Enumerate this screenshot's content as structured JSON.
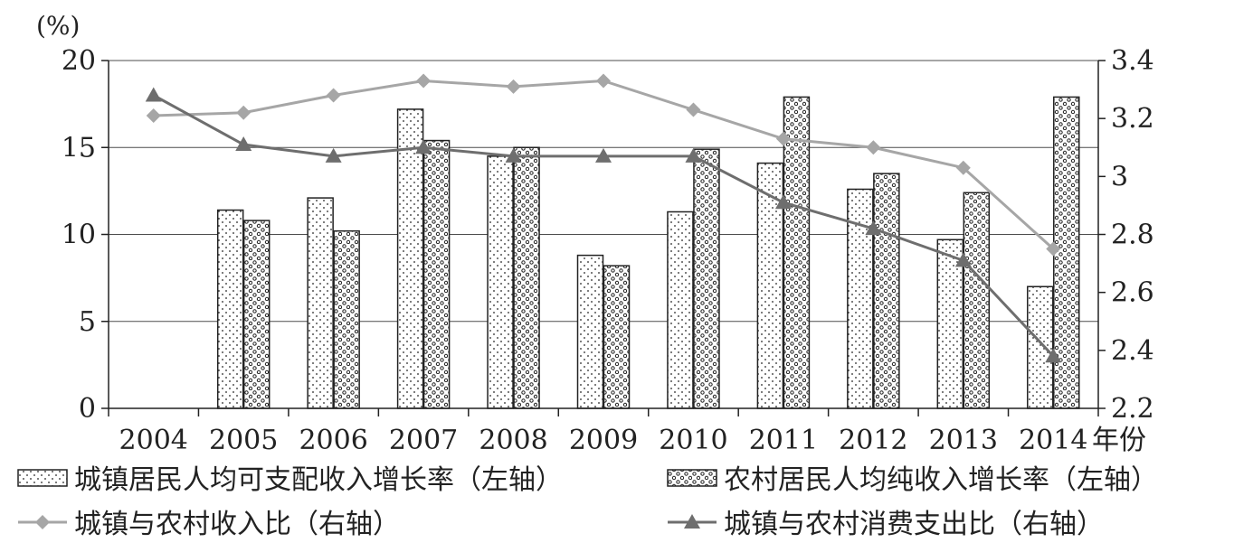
{
  "chart_data": {
    "type": "bar+line",
    "unit_label": "(%)",
    "xlabel": "年份",
    "categories": [
      "2004",
      "2005",
      "2006",
      "2007",
      "2008",
      "2009",
      "2010",
      "2011",
      "2012",
      "2013",
      "2014"
    ],
    "y_left": {
      "lim": [
        0,
        20
      ],
      "ticks": [
        "0",
        "5",
        "10",
        "15",
        "20"
      ]
    },
    "y_right": {
      "lim": [
        2.2,
        3.4
      ],
      "ticks": [
        "2.2",
        "2.4",
        "2.6",
        "2.8",
        "3",
        "3.2",
        "3.4"
      ]
    },
    "grid": true,
    "legend_position": "bottom",
    "bar_series": [
      {
        "name": "城镇居民人均可支配收入增长率（左轴）",
        "values": [
          null,
          11.4,
          12.1,
          17.2,
          14.5,
          8.8,
          11.3,
          14.1,
          12.6,
          9.7,
          7.0
        ]
      },
      {
        "name": "农村居民人均纯收入增长率（左轴）",
        "values": [
          null,
          10.8,
          10.2,
          15.4,
          15.0,
          8.2,
          14.9,
          17.9,
          13.5,
          12.4,
          17.9
        ]
      }
    ],
    "line_series": [
      {
        "name": "城镇与农村收入比（右轴）",
        "marker": "diamond",
        "color": "#a6a6a6",
        "values": [
          3.21,
          3.22,
          3.28,
          3.33,
          3.31,
          3.33,
          3.23,
          3.13,
          3.1,
          3.03,
          2.75
        ]
      },
      {
        "name": "城镇与农村消费支出比（右轴）",
        "marker": "triangle",
        "color": "#6e6e6e",
        "values": [
          3.28,
          3.11,
          3.07,
          3.1,
          3.07,
          3.07,
          3.07,
          2.91,
          2.82,
          2.71,
          2.38
        ]
      }
    ]
  }
}
